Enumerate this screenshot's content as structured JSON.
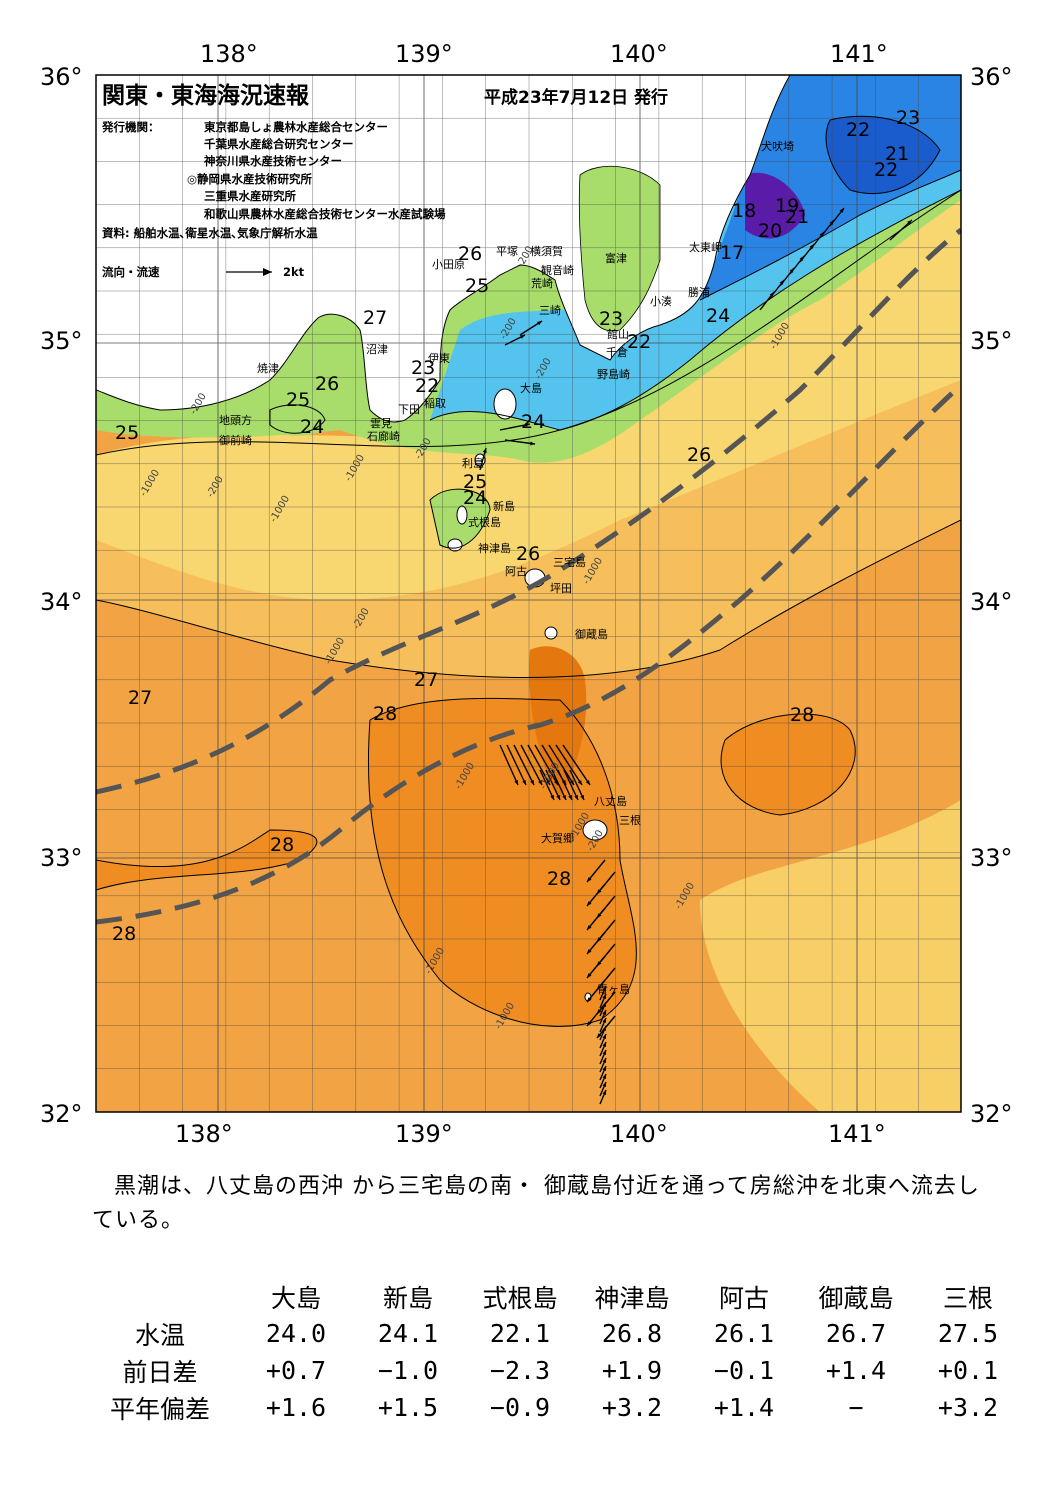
{
  "header": {
    "title": "関東・東海海況速報",
    "date": "平成23年7月12日 発行",
    "publisher_label": "発行機関：",
    "publishers": [
      "東京都島しょ農林水産総合センター",
      "千葉県水産総合研究センター",
      "神奈川県水産技術センター",
      "◎静岡県水産技術研究所",
      "三重県水産研究所",
      "和歌山県農林水産総合技術センター水産試験場"
    ],
    "sources": "資料: 船舶水温､衛星水温､気象庁解析水温",
    "current_legend": "流向・流速",
    "current_scale": "2kt"
  },
  "axes": {
    "lon_labels": [
      "138°",
      "139°",
      "140°",
      "141°"
    ],
    "lat_labels": [
      "36°",
      "35°",
      "34°",
      "33°",
      "32°"
    ]
  },
  "map": {
    "contour_labels": [
      "23",
      "22",
      "21",
      "22",
      "19",
      "18",
      "20",
      "21",
      "17",
      "26",
      "25",
      "27",
      "24",
      "23",
      "22",
      "26",
      "25",
      "24",
      "25",
      "23",
      "22",
      "24",
      "26",
      "25",
      "24",
      "26",
      "27",
      "27",
      "28",
      "28",
      "28",
      "28",
      "28"
    ],
    "place_names": [
      "犬吠埼",
      "太東岬",
      "勝浦",
      "小湊",
      "富津",
      "横須賀",
      "平塚",
      "小田原",
      "観音崎",
      "荒崎",
      "三崎",
      "館山",
      "千倉",
      "野島崎",
      "大島",
      "沼津",
      "伊東",
      "稲取",
      "下田",
      "雲見",
      "石廊崎",
      "焼津",
      "地頭方",
      "御前崎",
      "利島",
      "新島",
      "式根島",
      "神津島",
      "三宅島",
      "阿古",
      "坪田",
      "御蔵島",
      "八丈島",
      "三根",
      "大賀郷",
      "青ヶ島"
    ],
    "depth_labels": [
      "-1000",
      "-200",
      "-1000",
      "-1000",
      "-200",
      "-200",
      "-200",
      "-1000",
      "-200",
      "-1000",
      "-1000",
      "-200",
      "-1000",
      "-1000",
      "-1000",
      "-1000",
      "-1000",
      "-1000",
      "-200",
      "-200"
    ],
    "colors": {
      "water_warm": "#f0a040",
      "water_warmer": "#f08a1c",
      "water_mild": "#f8c860",
      "water_cool": "#f8e070",
      "water_green": "#a8e070",
      "water_cyan": "#40c0f0",
      "water_blue": "#2070e0",
      "water_purple": "#6020b0",
      "kuroshio_axis": "#555555",
      "land": "#ffffff"
    }
  },
  "summary": {
    "text": "黒潮は、八丈島の西沖 から三宅島の南・ 御蔵島付近を通って房総沖を北東へ流去している。"
  },
  "stats": {
    "columns": [
      "大島",
      "新島",
      "式根島",
      "神津島",
      "阿古",
      "御蔵島",
      "三根"
    ],
    "rows": [
      {
        "label": "水温",
        "values": [
          "24.0",
          "24.1",
          "22.1",
          "26.8",
          "26.1",
          "26.7",
          "27.5"
        ]
      },
      {
        "label": "前日差",
        "values": [
          "+0.7",
          "−1.0",
          "−2.3",
          "+1.9",
          "−0.1",
          "+1.4",
          "+0.1"
        ]
      },
      {
        "label": "平年偏差",
        "values": [
          "+1.6",
          "+1.5",
          "−0.9",
          "+3.2",
          "+1.4",
          "−",
          "+3.2"
        ]
      }
    ]
  }
}
